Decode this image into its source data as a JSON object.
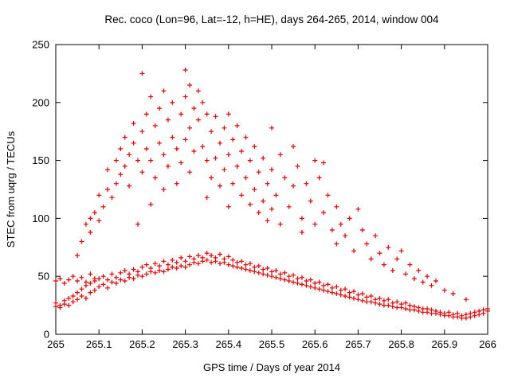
{
  "chart_data": {
    "type": "scatter",
    "title": "Rec. coco (Lon=96, Lat=-12, h=HE), days 264-265, 2014, window 004",
    "xlabel": "GPS time / Days of year 2014",
    "ylabel": "STEC from uqrg / TECUs",
    "xlim": [
      265,
      266
    ],
    "ylim": [
      0,
      250
    ],
    "grid": false,
    "legend": "none",
    "marker": "plus",
    "marker_color": "#dd0000",
    "axis_color": "#000000",
    "x_ticks": [
      [
        265,
        "265"
      ],
      [
        265.1,
        "265.1"
      ],
      [
        265.2,
        "265.2"
      ],
      [
        265.3,
        "265.3"
      ],
      [
        265.4,
        "265.4"
      ],
      [
        265.5,
        "265.5"
      ],
      [
        265.6,
        "265.6"
      ],
      [
        265.7,
        "265.7"
      ],
      [
        265.8,
        "265.8"
      ],
      [
        265.9,
        "265.9"
      ],
      [
        266,
        "266"
      ]
    ],
    "y_ticks": [
      [
        0,
        "0"
      ],
      [
        50,
        "50"
      ],
      [
        100,
        "100"
      ],
      [
        150,
        "150"
      ],
      [
        200,
        "200"
      ],
      [
        250,
        "250"
      ]
    ],
    "points": [
      [
        265.0,
        24
      ],
      [
        265.01,
        23
      ],
      [
        265.02,
        26
      ],
      [
        265.03,
        25
      ],
      [
        265.04,
        28
      ],
      [
        265.05,
        30
      ],
      [
        265.06,
        33
      ],
      [
        265.07,
        31
      ],
      [
        265.08,
        36
      ],
      [
        265.09,
        38
      ],
      [
        265.1,
        41
      ],
      [
        265.11,
        43
      ],
      [
        265.12,
        40
      ],
      [
        265.13,
        45
      ],
      [
        265.14,
        44
      ],
      [
        265.15,
        47
      ],
      [
        265.16,
        46
      ],
      [
        265.17,
        49
      ],
      [
        265.18,
        48
      ],
      [
        265.19,
        51
      ],
      [
        265.2,
        50
      ],
      [
        265.21,
        52
      ],
      [
        265.22,
        54
      ],
      [
        265.23,
        53
      ],
      [
        265.24,
        55
      ],
      [
        265.25,
        54
      ],
      [
        265.26,
        56
      ],
      [
        265.27,
        58
      ],
      [
        265.28,
        57
      ],
      [
        265.29,
        59
      ],
      [
        265.3,
        58
      ],
      [
        265.31,
        60
      ],
      [
        265.32,
        62
      ],
      [
        265.33,
        61
      ],
      [
        265.34,
        63
      ],
      [
        265.35,
        64
      ],
      [
        265.36,
        62
      ],
      [
        265.37,
        63
      ],
      [
        265.38,
        61
      ],
      [
        265.39,
        62
      ],
      [
        265.4,
        60
      ],
      [
        265.41,
        59
      ],
      [
        265.42,
        58
      ],
      [
        265.43,
        57
      ],
      [
        265.44,
        56
      ],
      [
        265.45,
        55
      ],
      [
        265.46,
        54
      ],
      [
        265.47,
        53
      ],
      [
        265.48,
        52
      ],
      [
        265.49,
        51
      ],
      [
        265.5,
        50
      ],
      [
        265.51,
        49
      ],
      [
        265.52,
        48
      ],
      [
        265.53,
        47
      ],
      [
        265.54,
        46
      ],
      [
        265.55,
        45
      ],
      [
        265.56,
        44
      ],
      [
        265.57,
        43
      ],
      [
        265.58,
        42
      ],
      [
        265.59,
        41
      ],
      [
        265.6,
        40
      ],
      [
        265.61,
        39
      ],
      [
        265.62,
        38
      ],
      [
        265.63,
        37
      ],
      [
        265.64,
        36
      ],
      [
        265.65,
        35
      ],
      [
        265.66,
        34
      ],
      [
        265.67,
        33
      ],
      [
        265.68,
        32
      ],
      [
        265.69,
        31
      ],
      [
        265.7,
        30
      ],
      [
        265.71,
        29
      ],
      [
        265.72,
        28
      ],
      [
        265.73,
        28
      ],
      [
        265.74,
        27
      ],
      [
        265.75,
        26
      ],
      [
        265.76,
        25
      ],
      [
        265.77,
        25
      ],
      [
        265.78,
        24
      ],
      [
        265.79,
        23
      ],
      [
        265.8,
        23
      ],
      [
        265.81,
        22
      ],
      [
        265.82,
        21
      ],
      [
        265.83,
        21
      ],
      [
        265.84,
        20
      ],
      [
        265.85,
        19
      ],
      [
        265.86,
        19
      ],
      [
        265.87,
        18
      ],
      [
        265.88,
        18
      ],
      [
        265.89,
        17
      ],
      [
        265.9,
        16
      ],
      [
        265.91,
        16
      ],
      [
        265.92,
        15
      ],
      [
        265.93,
        15
      ],
      [
        265.94,
        14
      ],
      [
        265.95,
        14
      ],
      [
        265.96,
        15
      ],
      [
        265.97,
        16
      ],
      [
        265.98,
        17
      ],
      [
        265.99,
        18
      ],
      [
        266.0,
        20
      ],
      [
        265.0,
        27
      ],
      [
        265.01,
        25
      ],
      [
        265.02,
        29
      ],
      [
        265.03,
        31
      ],
      [
        265.04,
        33
      ],
      [
        265.05,
        36
      ],
      [
        265.06,
        39
      ],
      [
        265.07,
        42
      ],
      [
        265.08,
        44
      ],
      [
        265.09,
        46
      ],
      [
        265.1,
        48
      ],
      [
        265.11,
        50
      ],
      [
        265.12,
        47
      ],
      [
        265.13,
        52
      ],
      [
        265.14,
        49
      ],
      [
        265.15,
        53
      ],
      [
        265.16,
        55
      ],
      [
        265.17,
        52
      ],
      [
        265.18,
        56
      ],
      [
        265.19,
        54
      ],
      [
        265.2,
        58
      ],
      [
        265.21,
        60
      ],
      [
        265.22,
        57
      ],
      [
        265.23,
        61
      ],
      [
        265.24,
        59
      ],
      [
        265.25,
        63
      ],
      [
        265.26,
        60
      ],
      [
        265.27,
        64
      ],
      [
        265.28,
        62
      ],
      [
        265.29,
        66
      ],
      [
        265.3,
        63
      ],
      [
        265.31,
        67
      ],
      [
        265.32,
        65
      ],
      [
        265.33,
        68
      ],
      [
        265.34,
        66
      ],
      [
        265.35,
        70
      ],
      [
        265.36,
        68
      ],
      [
        265.37,
        66
      ],
      [
        265.38,
        69
      ],
      [
        265.39,
        65
      ],
      [
        265.4,
        67
      ],
      [
        265.41,
        64
      ],
      [
        265.42,
        62
      ],
      [
        265.43,
        63
      ],
      [
        265.44,
        60
      ],
      [
        265.45,
        61
      ],
      [
        265.46,
        58
      ],
      [
        265.47,
        59
      ],
      [
        265.48,
        56
      ],
      [
        265.49,
        57
      ],
      [
        265.5,
        54
      ],
      [
        265.51,
        55
      ],
      [
        265.52,
        52
      ],
      [
        265.53,
        53
      ],
      [
        265.54,
        50
      ],
      [
        265.55,
        51
      ],
      [
        265.56,
        48
      ],
      [
        265.57,
        49
      ],
      [
        265.58,
        46
      ],
      [
        265.59,
        47
      ],
      [
        265.6,
        44
      ],
      [
        265.61,
        45
      ],
      [
        265.62,
        42
      ],
      [
        265.63,
        43
      ],
      [
        265.64,
        40
      ],
      [
        265.65,
        41
      ],
      [
        265.66,
        38
      ],
      [
        265.67,
        39
      ],
      [
        265.68,
        36
      ],
      [
        265.69,
        37
      ],
      [
        265.7,
        34
      ],
      [
        265.71,
        35
      ],
      [
        265.72,
        32
      ],
      [
        265.73,
        33
      ],
      [
        265.74,
        30
      ],
      [
        265.75,
        31
      ],
      [
        265.76,
        29
      ],
      [
        265.77,
        30
      ],
      [
        265.78,
        27
      ],
      [
        265.79,
        28
      ],
      [
        265.8,
        26
      ],
      [
        265.81,
        27
      ],
      [
        265.82,
        25
      ],
      [
        265.83,
        24
      ],
      [
        265.84,
        23
      ],
      [
        265.85,
        22
      ],
      [
        265.86,
        22
      ],
      [
        265.87,
        21
      ],
      [
        265.88,
        20
      ],
      [
        265.89,
        19
      ],
      [
        265.9,
        18
      ],
      [
        265.91,
        19
      ],
      [
        265.92,
        17
      ],
      [
        265.93,
        18
      ],
      [
        265.94,
        16
      ],
      [
        265.95,
        17
      ],
      [
        265.96,
        18
      ],
      [
        265.97,
        19
      ],
      [
        265.98,
        20
      ],
      [
        265.99,
        21
      ],
      [
        266.0,
        22
      ],
      [
        265.0,
        46
      ],
      [
        265.01,
        48
      ],
      [
        265.02,
        44
      ],
      [
        265.03,
        47
      ],
      [
        265.04,
        50
      ],
      [
        265.05,
        46
      ],
      [
        265.06,
        49
      ],
      [
        265.07,
        45
      ],
      [
        265.08,
        52
      ],
      [
        265.09,
        48
      ],
      [
        265.05,
        68
      ],
      [
        265.06,
        80
      ],
      [
        265.07,
        95
      ],
      [
        265.08,
        100
      ],
      [
        265.08,
        88
      ],
      [
        265.09,
        105
      ],
      [
        265.1,
        98
      ],
      [
        265.1,
        120
      ],
      [
        265.11,
        110
      ],
      [
        265.12,
        125
      ],
      [
        265.12,
        142
      ],
      [
        265.13,
        118
      ],
      [
        265.14,
        130
      ],
      [
        265.14,
        150
      ],
      [
        265.15,
        138
      ],
      [
        265.15,
        160
      ],
      [
        265.16,
        145
      ],
      [
        265.16,
        170
      ],
      [
        265.17,
        155
      ],
      [
        265.17,
        128
      ],
      [
        265.18,
        165
      ],
      [
        265.18,
        182
      ],
      [
        265.19,
        150
      ],
      [
        265.19,
        95
      ],
      [
        265.2,
        225
      ],
      [
        265.2,
        175
      ],
      [
        265.2,
        140
      ],
      [
        265.21,
        190
      ],
      [
        265.21,
        160
      ],
      [
        265.22,
        205
      ],
      [
        265.22,
        150
      ],
      [
        265.22,
        112
      ],
      [
        265.23,
        180
      ],
      [
        265.23,
        135
      ],
      [
        265.24,
        195
      ],
      [
        265.24,
        165
      ],
      [
        265.25,
        210
      ],
      [
        265.25,
        155
      ],
      [
        265.25,
        125
      ],
      [
        265.26,
        185
      ],
      [
        265.26,
        145
      ],
      [
        265.27,
        170
      ],
      [
        265.27,
        200
      ],
      [
        265.28,
        160
      ],
      [
        265.28,
        130
      ],
      [
        265.29,
        190
      ],
      [
        265.29,
        148
      ],
      [
        265.3,
        228
      ],
      [
        265.3,
        205
      ],
      [
        265.3,
        168
      ],
      [
        265.31,
        215
      ],
      [
        265.31,
        178
      ],
      [
        265.31,
        140
      ],
      [
        265.32,
        195
      ],
      [
        265.32,
        158
      ],
      [
        265.33,
        210
      ],
      [
        265.33,
        185
      ],
      [
        265.34,
        200
      ],
      [
        265.34,
        162
      ],
      [
        265.35,
        190
      ],
      [
        265.35,
        150
      ],
      [
        265.35,
        118
      ],
      [
        265.36,
        175
      ],
      [
        265.36,
        135
      ],
      [
        265.37,
        188
      ],
      [
        265.37,
        152
      ],
      [
        265.38,
        165
      ],
      [
        265.38,
        128
      ],
      [
        265.39,
        178
      ],
      [
        265.39,
        142
      ],
      [
        265.4,
        190
      ],
      [
        265.4,
        155
      ],
      [
        265.4,
        110
      ],
      [
        265.41,
        168
      ],
      [
        265.41,
        130
      ],
      [
        265.42,
        180
      ],
      [
        265.42,
        145
      ],
      [
        265.43,
        158
      ],
      [
        265.43,
        120
      ],
      [
        265.44,
        170
      ],
      [
        265.44,
        135
      ],
      [
        265.45,
        150
      ],
      [
        265.45,
        112
      ],
      [
        265.46,
        162
      ],
      [
        265.46,
        125
      ],
      [
        265.47,
        140
      ],
      [
        265.47,
        105
      ],
      [
        265.48,
        152
      ],
      [
        265.48,
        115
      ],
      [
        265.49,
        130
      ],
      [
        265.49,
        98
      ],
      [
        265.5,
        178
      ],
      [
        265.5,
        142
      ],
      [
        265.5,
        108
      ],
      [
        265.51,
        120
      ],
      [
        265.52,
        155
      ],
      [
        265.52,
        95
      ],
      [
        265.53,
        135
      ],
      [
        265.54,
        110
      ],
      [
        265.55,
        162
      ],
      [
        265.55,
        128
      ],
      [
        265.56,
        145
      ],
      [
        265.57,
        100
      ],
      [
        265.57,
        88
      ],
      [
        265.58,
        130
      ],
      [
        265.59,
        115
      ],
      [
        265.6,
        150
      ],
      [
        265.6,
        95
      ],
      [
        265.61,
        135
      ],
      [
        265.62,
        148
      ],
      [
        265.62,
        105
      ],
      [
        265.63,
        120
      ],
      [
        265.64,
        90
      ],
      [
        265.65,
        110
      ],
      [
        265.65,
        78
      ],
      [
        265.66,
        95
      ],
      [
        265.67,
        85
      ],
      [
        265.68,
        100
      ],
      [
        265.69,
        72
      ],
      [
        265.7,
        108
      ],
      [
        265.71,
        90
      ],
      [
        265.72,
        78
      ],
      [
        265.73,
        65
      ],
      [
        265.74,
        85
      ],
      [
        265.75,
        70
      ],
      [
        265.76,
        60
      ],
      [
        265.77,
        75
      ],
      [
        265.78,
        55
      ],
      [
        265.79,
        65
      ],
      [
        265.8,
        72
      ],
      [
        265.81,
        52
      ],
      [
        265.82,
        60
      ],
      [
        265.83,
        48
      ],
      [
        265.84,
        55
      ],
      [
        265.85,
        45
      ],
      [
        265.86,
        50
      ],
      [
        265.87,
        42
      ],
      [
        265.88,
        46
      ],
      [
        265.9,
        38
      ],
      [
        265.92,
        35
      ],
      [
        265.95,
        30
      ]
    ]
  }
}
